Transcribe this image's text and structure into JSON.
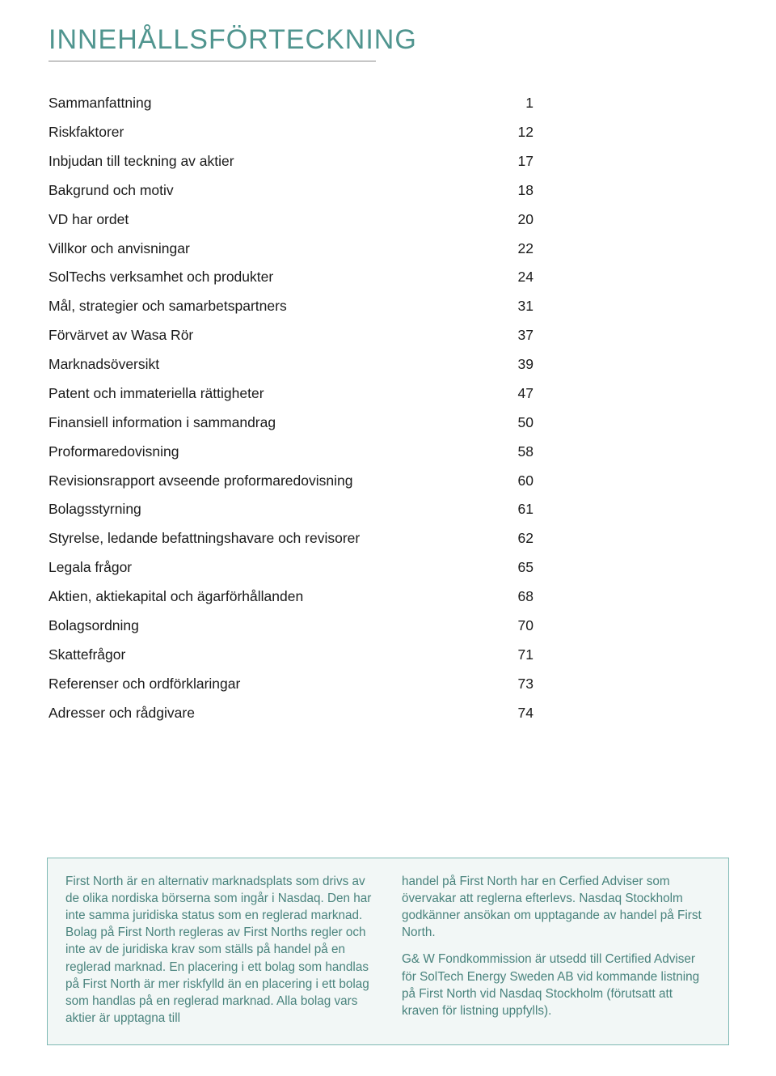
{
  "title": "INNEHÅLLSFÖRTECKNING",
  "title_color": "#50958f",
  "title_fontsize": 34,
  "toc_fontsize": 17.5,
  "toc": [
    {
      "label": "Sammanfattning",
      "page": "1"
    },
    {
      "label": "Riskfaktorer",
      "page": "12"
    },
    {
      "label": "Inbjudan till teckning av aktier",
      "page": "17"
    },
    {
      "label": "Bakgrund och motiv",
      "page": "18"
    },
    {
      "label": "VD har ordet",
      "page": "20"
    },
    {
      "label": "Villkor och anvisningar",
      "page": "22"
    },
    {
      "label": "SolTechs verksamhet och produkter",
      "page": "24"
    },
    {
      "label": "Mål, strategier och samarbetspartners",
      "page": "31"
    },
    {
      "label": "Förvärvet av Wasa Rör",
      "page": "37"
    },
    {
      "label": "Marknadsöversikt",
      "page": "39"
    },
    {
      "label": "Patent och immateriella rättigheter",
      "page": "47"
    },
    {
      "label": "Finansiell information i sammandrag",
      "page": "50"
    },
    {
      "label": "Proformaredovisning",
      "page": "58"
    },
    {
      "label": "Revisionsrapport avseende proformaredovisning",
      "page": "60"
    },
    {
      "label": "Bolagsstyrning",
      "page": "61"
    },
    {
      "label": "Styrelse, ledande befattningshavare och revisorer",
      "page": "62"
    },
    {
      "label": "Legala frågor",
      "page": "65"
    },
    {
      "label": "Aktien, aktiekapital och ägarförhållanden",
      "page": "68"
    },
    {
      "label": "Bolagsordning",
      "page": "70"
    },
    {
      "label": "Skattefrågor",
      "page": "71"
    },
    {
      "label": "Referenser och ordförklaringar",
      "page": "73"
    },
    {
      "label": "Adresser och rådgivare",
      "page": "74"
    }
  ],
  "infobox": {
    "background_color": "#f2f7f6",
    "border_color": "#7eb9b3",
    "text_color": "#49837d",
    "fontsize": 15.3,
    "left_col": {
      "p1": "First North är en alternativ marknadsplats som drivs av de olika nordiska börserna som ingår i Nasdaq. Den har inte samma juridiska status som en reglerad marknad. Bolag på First North regleras av First Norths regler och inte av de juridiska krav som ställs på handel på en reglerad marknad. En placering i ett bolag som handlas på First North är mer riskfylld än en placering i ett bolag som handlas på en reglerad marknad. Alla bolag vars aktier är upptagna till"
    },
    "right_col": {
      "p1": "handel på First North har en Cerfied Adviser som övervakar att reglerna efterlevs. Nasdaq Stockholm godkänner ansökan om upptagande av handel på First North.",
      "p2": "G& W Fondkommission är utsedd till Certified Adviser för SolTech Energy Sweden AB vid kommande listning på First North vid Nasdaq Stockholm (förutsatt att kraven för listning uppfylls)."
    }
  }
}
